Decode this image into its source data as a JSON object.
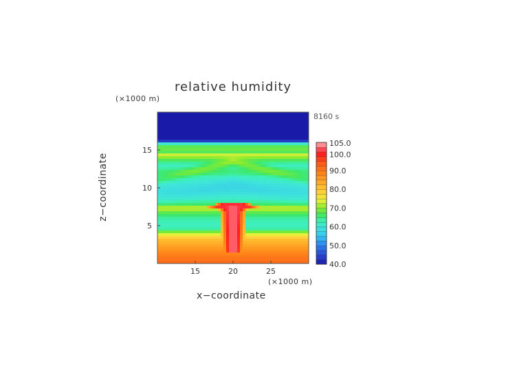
{
  "chart_data": {
    "type": "heatmap",
    "title": "relative humidity",
    "time_label": "8160 s",
    "xlabel": "x−coordinate",
    "ylabel": "z−coordinate",
    "x_unit": "(×1000 m)",
    "y_unit": "(×1000 m)",
    "xlim": [
      10,
      30
    ],
    "ylim": [
      0,
      20
    ],
    "x_ticks": [
      15,
      20,
      25
    ],
    "y_ticks": [
      5,
      10,
      15
    ],
    "colorbar": {
      "min": 40.0,
      "max": 105.0,
      "tick_values": [
        40.0,
        50.0,
        60.0,
        70.0,
        80.0,
        90.0,
        100.0,
        105.0
      ],
      "tick_labels": [
        "40.0",
        "50.0",
        "60.0",
        "70.0",
        "80.0",
        "90.0",
        "100.0",
        "105.0"
      ]
    },
    "colormap": [
      [
        40,
        "#1a1aa8"
      ],
      [
        45,
        "#2b47d4"
      ],
      [
        50,
        "#2a80f0"
      ],
      [
        55,
        "#34c4f2"
      ],
      [
        60,
        "#3fe6d8"
      ],
      [
        63,
        "#3ef0b8"
      ],
      [
        66,
        "#3ee86a"
      ],
      [
        70,
        "#86ea2e"
      ],
      [
        74,
        "#e4f03a"
      ],
      [
        78,
        "#ffd43c"
      ],
      [
        83,
        "#ffb02a"
      ],
      [
        88,
        "#ff8a1a"
      ],
      [
        94,
        "#ff5a1a"
      ],
      [
        99,
        "#ff1e1e"
      ],
      [
        101,
        "#ff4050"
      ],
      [
        105,
        "#ffb0b0"
      ]
    ],
    "vertical_profile": [
      [
        0.0,
        92
      ],
      [
        1.0,
        90
      ],
      [
        2.0,
        86
      ],
      [
        3.0,
        82
      ],
      [
        3.5,
        78
      ],
      [
        4.0,
        72
      ],
      [
        4.5,
        64
      ],
      [
        5.0,
        62
      ],
      [
        6.0,
        64
      ],
      [
        6.8,
        68
      ],
      [
        7.3,
        74
      ],
      [
        7.8,
        66
      ],
      [
        8.5,
        62
      ],
      [
        9.5,
        59
      ],
      [
        10.5,
        60
      ],
      [
        11.5,
        63
      ],
      [
        12.0,
        66
      ],
      [
        13.0,
        62
      ],
      [
        13.8,
        68
      ],
      [
        14.3,
        74
      ],
      [
        14.8,
        66
      ],
      [
        15.3,
        70
      ],
      [
        15.8,
        62
      ],
      [
        16.1,
        45
      ],
      [
        16.4,
        40
      ],
      [
        20.0,
        40
      ]
    ],
    "features": [
      {
        "name": "cloud_core",
        "x_center": 20,
        "z_bottom": 1.5,
        "z_top": 7.8,
        "half_width_km": 0.8,
        "value": 100
      },
      {
        "name": "anvil",
        "x_center": 20,
        "z_center": 7.5,
        "half_width_km": 3.5,
        "value": 100
      },
      {
        "name": "moist_arms_upper",
        "x_center": 20,
        "z_center": 13.5,
        "spread_per_km": 0.25,
        "value": 74
      },
      {
        "name": "dry_wedge_mid",
        "x_center": 20,
        "z_center": 10.5,
        "spread_per_km": 0.3,
        "value": 56
      }
    ]
  }
}
